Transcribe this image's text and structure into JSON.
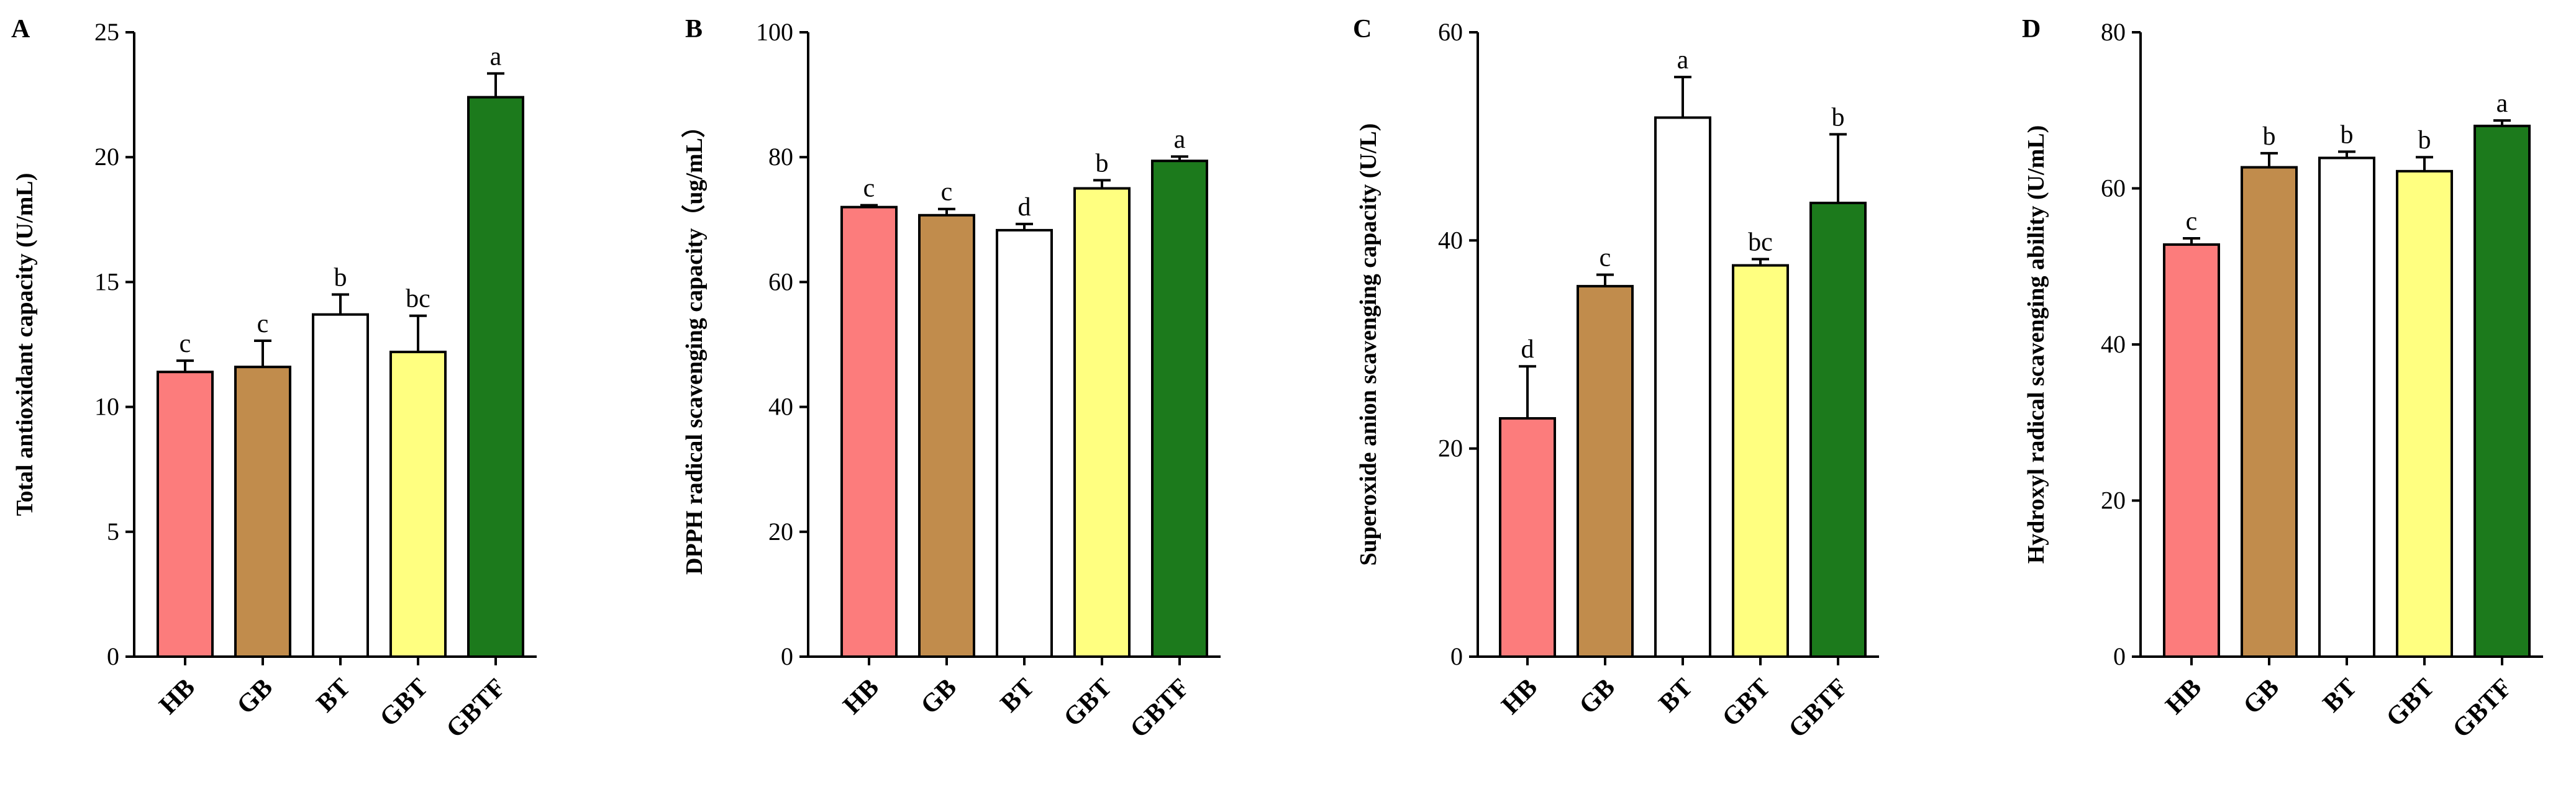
{
  "chart_data": [
    {
      "panel": "A",
      "type": "bar",
      "title": "",
      "xlabel": "",
      "ylabel": "Total antioxidant capacity (U/mL)",
      "ylim": [
        0,
        25
      ],
      "yticks": [
        0,
        5,
        10,
        15,
        20,
        25
      ],
      "categories": [
        "HB",
        "GB",
        "BT",
        "GBT",
        "GBTF"
      ],
      "values": [
        11.4,
        11.6,
        13.7,
        12.2,
        22.4
      ],
      "errors": [
        0.45,
        1.05,
        0.8,
        1.45,
        0.95
      ],
      "significance": [
        "c",
        "c",
        "b",
        "bc",
        "a"
      ]
    },
    {
      "panel": "B",
      "type": "bar",
      "title": "",
      "xlabel": "",
      "ylabel": "DPPH radical scavenging capacity（ug/mL）",
      "ylim": [
        0,
        100
      ],
      "yticks": [
        0,
        20,
        40,
        60,
        80,
        100
      ],
      "categories": [
        "HB",
        "GB",
        "BT",
        "GBT",
        "GBTF"
      ],
      "values": [
        72.0,
        70.7,
        68.3,
        75.0,
        79.4
      ],
      "errors": [
        0.3,
        1.0,
        1.0,
        1.3,
        0.7
      ],
      "significance": [
        "c",
        "c",
        "d",
        "b",
        "a"
      ]
    },
    {
      "panel": "C",
      "type": "bar",
      "title": "",
      "xlabel": "",
      "ylabel": "Superoxide anion scavenging capacity (U/L)",
      "ylim": [
        0,
        60
      ],
      "yticks": [
        0,
        20,
        40,
        60
      ],
      "categories": [
        "HB",
        "GB",
        "BT",
        "GBT",
        "GBTF"
      ],
      "values": [
        22.9,
        35.6,
        51.8,
        37.6,
        43.6
      ],
      "errors": [
        5.0,
        1.1,
        3.9,
        0.6,
        6.6
      ],
      "significance": [
        "d",
        "c",
        "a",
        "bc",
        "b"
      ]
    },
    {
      "panel": "D",
      "type": "bar",
      "title": "",
      "xlabel": "",
      "ylabel": "Hydroxyl radical scavenging ability (U/mL)",
      "ylim": [
        0,
        80
      ],
      "yticks": [
        0,
        20,
        40,
        60,
        80
      ],
      "categories": [
        "HB",
        "GB",
        "BT",
        "GBT",
        "GBTF"
      ],
      "values": [
        52.8,
        62.7,
        63.9,
        62.2,
        68.0
      ],
      "errors": [
        0.8,
        1.8,
        0.8,
        1.8,
        0.7
      ],
      "significance": [
        "c",
        "b",
        "b",
        "b",
        "a"
      ]
    }
  ],
  "colors": {
    "HB": "#fc7c7c",
    "GB": "#c18c4c",
    "BT": "#ffffff",
    "GBT": "#ffff80",
    "GBTF": "#1c7a1c",
    "axis": "#000000"
  }
}
